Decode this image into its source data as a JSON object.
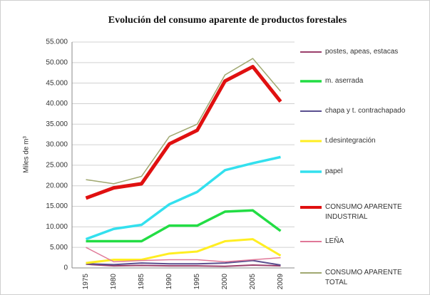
{
  "chart_data": {
    "type": "line",
    "title": "Evolución del consumo aparente de productos forestales",
    "y_label": "Miles de m³",
    "categories": [
      "1975",
      "1980",
      "1985",
      "1990",
      "1995",
      "2000",
      "2005",
      "2009"
    ],
    "ylim": [
      0,
      55000
    ],
    "yticks": [
      0,
      {
        "value": 5000,
        "label": "5.000"
      },
      {
        "value": 10000,
        "label": "10.000"
      },
      {
        "value": 15000,
        "label": "15.000"
      },
      {
        "value": 20000,
        "label": "20.000"
      },
      {
        "value": 25000,
        "label": "25.000"
      },
      {
        "value": 30000,
        "label": "30.000"
      },
      {
        "value": 35000,
        "label": "35.000"
      },
      {
        "value": 40000,
        "label": "40.000"
      },
      {
        "value": 45000,
        "label": "45.000"
      },
      {
        "value": 50000,
        "label": "50.000"
      },
      {
        "value": 55000,
        "label": "55.000"
      }
    ],
    "grid": true,
    "legend": "right",
    "series": [
      {
        "name": "postes, apeas, estacas",
        "color": "#9b3f6b",
        "width": 2,
        "values": [
          900,
          500,
          600,
          500,
          500,
          400,
          700,
          500
        ]
      },
      {
        "name": "m. aserrada",
        "color": "#22dd44",
        "width": 3.5,
        "values": [
          6500,
          6500,
          6500,
          10300,
          10300,
          13700,
          14000,
          9000
        ]
      },
      {
        "name": "chapa y t. contrachapado",
        "color": "#5a4f8f",
        "width": 2,
        "values": [
          1000,
          800,
          1200,
          1000,
          1000,
          1200,
          1800,
          700
        ]
      },
      {
        "name": "t.desintegración",
        "color": "#ffee22",
        "width": 3,
        "values": [
          1200,
          2000,
          2000,
          3500,
          4000,
          6500,
          7000,
          3000
        ]
      },
      {
        "name": "papel",
        "color": "#33e0ee",
        "width": 3.5,
        "values": [
          7000,
          9500,
          10500,
          15500,
          18500,
          23800,
          25500,
          27000
        ]
      },
      {
        "name": "CONSUMO APARENTE INDUSTRIAL",
        "color": "#e01010",
        "width": 5,
        "values": [
          17000,
          19500,
          20500,
          30200,
          33500,
          45500,
          49000,
          40500
        ]
      },
      {
        "name": "LEÑA",
        "color": "#e07898",
        "width": 1.5,
        "values": [
          5000,
          1500,
          1800,
          2000,
          2000,
          1500,
          2000,
          2500
        ]
      },
      {
        "name": "CONSUMO APARENTE TOTAL",
        "color": "#a0a870",
        "width": 1.5,
        "values": [
          21500,
          20500,
          22300,
          32000,
          35000,
          47000,
          51000,
          43000
        ]
      }
    ]
  }
}
